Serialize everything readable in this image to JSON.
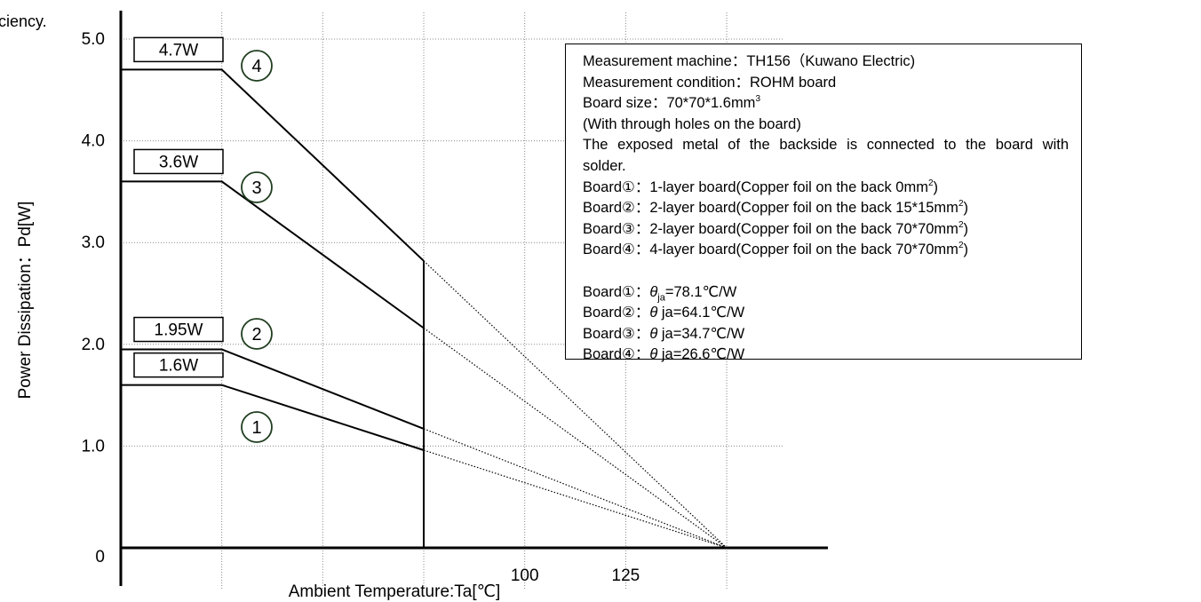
{
  "caption_fragment": "ciency.",
  "chart_data": {
    "type": "line",
    "title": "",
    "xlabel": "Ambient Temperature:Ta[℃]",
    "ylabel": "Power Dissipation：Pd[W]",
    "xlim": [
      0,
      150
    ],
    "ylim": [
      0,
      5.0
    ],
    "x_tick_labels": [
      {
        "value": 100,
        "label": "100"
      },
      {
        "value": 125,
        "label": "125"
      }
    ],
    "y_tick_labels": [
      {
        "value": 0,
        "label": "0"
      },
      {
        "value": 1.0,
        "label": "1.0"
      },
      {
        "value": 2.0,
        "label": "2.0"
      },
      {
        "value": 3.0,
        "label": "3.0"
      },
      {
        "value": 4.0,
        "label": "4.0"
      },
      {
        "value": 5.0,
        "label": "5.0"
      }
    ],
    "x_gridlines": [
      25,
      50,
      75,
      100,
      125,
      150
    ],
    "y_gridlines": [
      1.0,
      2.0,
      3.0,
      4.0,
      5.0
    ],
    "grid": true,
    "max_operating_temperature": 75,
    "zero_power_temperature": 150,
    "series": [
      {
        "id": 1,
        "marker": "1",
        "power_label": "1.6W",
        "pd_max": 1.6,
        "points": [
          [
            0,
            1.6
          ],
          [
            25,
            1.6
          ],
          [
            75,
            0.96
          ]
        ],
        "extrapolated_to": [
          150,
          0
        ]
      },
      {
        "id": 2,
        "marker": "2",
        "power_label": "1.95W",
        "pd_max": 1.95,
        "points": [
          [
            0,
            1.95
          ],
          [
            25,
            1.95
          ],
          [
            75,
            1.17
          ]
        ],
        "extrapolated_to": [
          150,
          0
        ]
      },
      {
        "id": 3,
        "marker": "3",
        "power_label": "3.6W",
        "pd_max": 3.6,
        "points": [
          [
            0,
            3.6
          ],
          [
            25,
            3.6
          ],
          [
            75,
            2.16
          ]
        ],
        "extrapolated_to": [
          150,
          0
        ]
      },
      {
        "id": 4,
        "marker": "4",
        "power_label": "4.7W",
        "pd_max": 4.7,
        "points": [
          [
            0,
            4.7
          ],
          [
            25,
            4.7
          ],
          [
            75,
            2.82
          ]
        ],
        "extrapolated_to": [
          150,
          0
        ]
      }
    ],
    "info_box": {
      "machine": "Measurement machine：TH156（Kuwano Electric)",
      "condition": "Measurement condition：ROHM board",
      "board_size_prefix": "Board size：70*70*1.6mm",
      "board_size_sup": "3",
      "holes": "(With through holes on the board)",
      "exposed_line1": "The exposed metal of the backside is connected to the board with",
      "exposed_line2": "solder.",
      "boards": [
        {
          "text": "Board①：1-layer board(Copper foil on the back 0mm",
          "sup": "2",
          "close": ")"
        },
        {
          "text": "Board②：2-layer board(Copper foil on the back 15*15mm",
          "sup": "2",
          "close": ")"
        },
        {
          "text": "Board③：2-layer board(Copper foil on the back 70*70mm",
          "sup": "2",
          "close": ")"
        },
        {
          "text": "Board④：4-layer board(Copper foil on the back 70*70mm",
          "sup": "2",
          "close": ")"
        }
      ],
      "thermal": [
        {
          "prefix": "Board①：",
          "theta": "θ",
          "sub": "ja",
          "value": "=78.1℃/W"
        },
        {
          "prefix": "Board②：",
          "theta": "θ",
          "sub": "",
          "value": "ja=64.1℃/W"
        },
        {
          "prefix": "Board③：",
          "theta": "θ",
          "sub": "",
          "value": "ja=34.7℃/W"
        },
        {
          "prefix": "Board④：",
          "theta": "θ",
          "sub": "",
          "value": "ja=26.6℃/W"
        }
      ]
    }
  }
}
